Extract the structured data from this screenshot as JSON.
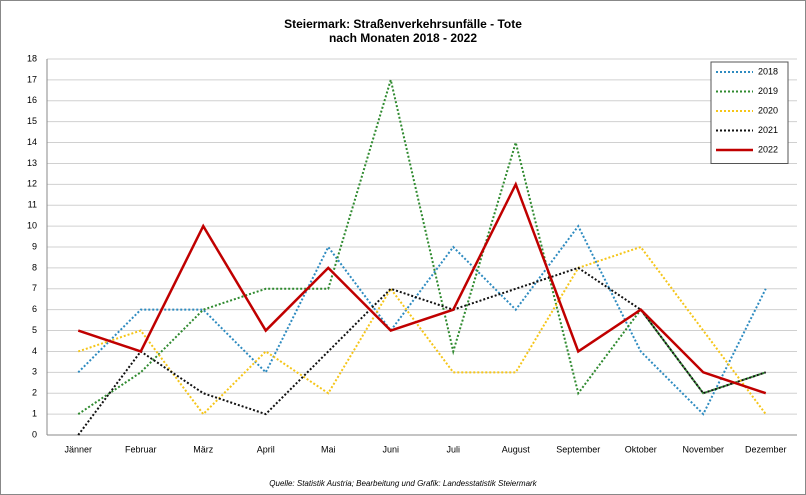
{
  "chart_data": {
    "type": "line",
    "title": "Steiermark: Straßenverkehrsunfälle - Tote",
    "subtitle": "nach Monaten 2018 - 2022",
    "source": "Quelle: Statistik Austria; Bearbeitung und Grafik: Landesstatistik Steiermark",
    "categories": [
      "Jänner",
      "Februar",
      "März",
      "April",
      "Mai",
      "Juni",
      "Juli",
      "August",
      "September",
      "Oktober",
      "November",
      "Dezember"
    ],
    "series": [
      {
        "name": "2018",
        "color": "#2e8bc0",
        "dashed": true,
        "values": [
          3,
          6,
          6,
          3,
          9,
          5,
          9,
          6,
          10,
          4,
          1,
          7
        ]
      },
      {
        "name": "2019",
        "color": "#2f8a2f",
        "dashed": true,
        "values": [
          1,
          3,
          6,
          7,
          7,
          17,
          4,
          14,
          2,
          6,
          2,
          3
        ]
      },
      {
        "name": "2020",
        "color": "#f5c518",
        "dashed": true,
        "values": [
          4,
          5,
          1,
          4,
          2,
          7,
          3,
          3,
          8,
          9,
          5,
          1
        ]
      },
      {
        "name": "2021",
        "color": "#111111",
        "dashed": true,
        "values": [
          0,
          4,
          2,
          1,
          4,
          7,
          6,
          7,
          8,
          6,
          2,
          3
        ]
      },
      {
        "name": "2022",
        "color": "#c00000",
        "dashed": false,
        "values": [
          5,
          4,
          10,
          5,
          8,
          5,
          6,
          12,
          4,
          6,
          3,
          2
        ]
      }
    ],
    "ylim": [
      0,
      18
    ],
    "yticks": [
      0,
      1,
      2,
      3,
      4,
      5,
      6,
      7,
      8,
      9,
      10,
      11,
      12,
      13,
      14,
      15,
      16,
      17,
      18
    ],
    "grid": true,
    "legend": "top-right"
  }
}
